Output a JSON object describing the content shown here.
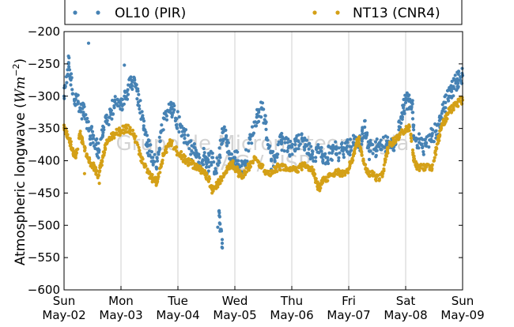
{
  "chart_data": {
    "type": "scatter",
    "ylabel": "Atmospheric longwave",
    "ylabel_unit_base": "W",
    "ylabel_unit_m": "m",
    "ylabel_unit_exp": "−2",
    "ylim": [
      -600,
      -200
    ],
    "yticks": [
      -200,
      -250,
      -300,
      -350,
      -400,
      -450,
      -500,
      -550,
      -600
    ],
    "ytick_labels": [
      "−200",
      "−250",
      "−300",
      "−350",
      "−400",
      "−450",
      "−500",
      "−550",
      "−600"
    ],
    "xlim": [
      "2013-05-02",
      "2013-05-09"
    ],
    "xticks": [
      {
        "day": "Sun",
        "date": "May-02"
      },
      {
        "day": "Mon",
        "date": "May-03"
      },
      {
        "day": "Tue",
        "date": "May-04"
      },
      {
        "day": "Wed",
        "date": "May-05"
      },
      {
        "day": "Thu",
        "date": "May-06"
      },
      {
        "day": "Fri",
        "date": "May-07"
      },
      {
        "day": "Sat",
        "date": "May-08"
      },
      {
        "day": "Sun",
        "date": "May-09"
      }
    ],
    "grid": "vertical",
    "legend_position": "top",
    "watermark": [
      "Grupo de Micrometeorologia",
      "IAG / USP"
    ],
    "series": [
      {
        "name": "OL10 (PIR)",
        "color": "#4682b4",
        "points": [
          [
            0.0,
            -300
          ],
          [
            0.04,
            -270
          ],
          [
            0.08,
            -250
          ],
          [
            0.12,
            -275
          ],
          [
            0.18,
            -305
          ],
          [
            0.22,
            -300
          ],
          [
            0.28,
            -318
          ],
          [
            0.34,
            -325
          ],
          [
            0.4,
            -340
          ],
          [
            0.46,
            -362
          ],
          [
            0.5,
            -355
          ],
          [
            0.56,
            -375
          ],
          [
            0.6,
            -385
          ],
          [
            0.66,
            -365
          ],
          [
            0.7,
            -352
          ],
          [
            0.76,
            -338
          ],
          [
            0.82,
            -325
          ],
          [
            0.88,
            -315
          ],
          [
            0.94,
            -305
          ],
          [
            1.0,
            -312
          ],
          [
            1.06,
            -300
          ],
          [
            1.12,
            -290
          ],
          [
            1.18,
            -282
          ],
          [
            1.24,
            -275
          ],
          [
            1.28,
            -292
          ],
          [
            1.32,
            -315
          ],
          [
            1.38,
            -330
          ],
          [
            1.42,
            -352
          ],
          [
            1.46,
            -372
          ],
          [
            1.5,
            -385
          ],
          [
            1.56,
            -395
          ],
          [
            1.62,
            -410
          ],
          [
            1.66,
            -390
          ],
          [
            1.7,
            -355
          ],
          [
            1.76,
            -335
          ],
          [
            1.82,
            -322
          ],
          [
            1.88,
            -318
          ],
          [
            1.92,
            -325
          ],
          [
            1.98,
            -335
          ],
          [
            2.04,
            -345
          ],
          [
            2.08,
            -355
          ],
          [
            2.12,
            -360
          ],
          [
            2.18,
            -372
          ],
          [
            2.24,
            -385
          ],
          [
            2.3,
            -380
          ],
          [
            2.36,
            -392
          ],
          [
            2.42,
            -403
          ],
          [
            2.46,
            -392
          ],
          [
            2.5,
            -410
          ],
          [
            2.54,
            -402
          ],
          [
            2.6,
            -395
          ],
          [
            2.66,
            -412
          ],
          [
            2.72,
            -400
          ],
          [
            2.76,
            -368
          ],
          [
            2.8,
            -355
          ],
          [
            2.86,
            -372
          ],
          [
            2.9,
            -390
          ],
          [
            2.94,
            -398
          ],
          [
            3.0,
            -395
          ],
          [
            3.06,
            -400
          ],
          [
            3.12,
            -408
          ],
          [
            3.18,
            -400
          ],
          [
            3.24,
            -385
          ],
          [
            3.3,
            -360
          ],
          [
            3.36,
            -340
          ],
          [
            3.42,
            -325
          ],
          [
            3.48,
            -320
          ],
          [
            3.54,
            -342
          ],
          [
            3.58,
            -375
          ],
          [
            3.64,
            -400
          ],
          [
            3.7,
            -395
          ],
          [
            3.76,
            -375
          ],
          [
            3.82,
            -370
          ],
          [
            3.88,
            -372
          ],
          [
            3.94,
            -380
          ],
          [
            4.0,
            -378
          ],
          [
            4.06,
            -375
          ],
          [
            4.12,
            -370
          ],
          [
            4.18,
            -365
          ],
          [
            4.24,
            -375
          ],
          [
            4.3,
            -382
          ],
          [
            4.36,
            -385
          ],
          [
            4.42,
            -395
          ],
          [
            4.48,
            -380
          ],
          [
            4.54,
            -390
          ],
          [
            4.6,
            -395
          ],
          [
            4.66,
            -388
          ],
          [
            4.72,
            -385
          ],
          [
            4.78,
            -382
          ],
          [
            4.84,
            -388
          ],
          [
            4.9,
            -385
          ],
          [
            4.96,
            -380
          ],
          [
            5.02,
            -378
          ],
          [
            5.08,
            -372
          ],
          [
            5.14,
            -365
          ],
          [
            5.2,
            -375
          ],
          [
            5.24,
            -358
          ],
          [
            5.28,
            -348
          ],
          [
            5.32,
            -360
          ],
          [
            5.36,
            -385
          ],
          [
            5.42,
            -375
          ],
          [
            5.48,
            -380
          ],
          [
            5.54,
            -372
          ],
          [
            5.6,
            -378
          ],
          [
            5.66,
            -375
          ],
          [
            5.7,
            -370
          ],
          [
            5.76,
            -372
          ],
          [
            5.82,
            -375
          ],
          [
            5.88,
            -352
          ],
          [
            5.92,
            -332
          ],
          [
            5.96,
            -318
          ],
          [
            6.0,
            -310
          ],
          [
            6.04,
            -305
          ],
          [
            6.08,
            -308
          ],
          [
            6.12,
            -312
          ],
          [
            6.14,
            -352
          ],
          [
            6.18,
            -365
          ],
          [
            6.24,
            -372
          ],
          [
            6.3,
            -378
          ],
          [
            6.36,
            -372
          ],
          [
            6.42,
            -368
          ],
          [
            6.46,
            -362
          ],
          [
            6.52,
            -355
          ],
          [
            6.58,
            -345
          ],
          [
            6.62,
            -332
          ],
          [
            6.66,
            -320
          ],
          [
            6.7,
            -310
          ],
          [
            6.76,
            -300
          ],
          [
            6.8,
            -292
          ],
          [
            6.84,
            -285
          ],
          [
            6.88,
            -280
          ],
          [
            6.92,
            -275
          ],
          [
            6.96,
            -270
          ],
          [
            7.0,
            -268
          ],
          [
            0.43,
            -218
          ],
          [
            2.72,
            -478
          ],
          [
            2.74,
            -498
          ],
          [
            2.78,
            -535
          ],
          [
            2.7,
            -503
          ],
          [
            0.08,
            -248
          ],
          [
            1.06,
            -252
          ]
        ]
      },
      {
        "name": "NT13 (CNR4)",
        "color": "#d4a017",
        "points": [
          [
            0.0,
            -345
          ],
          [
            0.04,
            -355
          ],
          [
            0.08,
            -365
          ],
          [
            0.12,
            -375
          ],
          [
            0.16,
            -385
          ],
          [
            0.2,
            -395
          ],
          [
            0.24,
            -382
          ],
          [
            0.28,
            -358
          ],
          [
            0.32,
            -368
          ],
          [
            0.36,
            -378
          ],
          [
            0.4,
            -392
          ],
          [
            0.44,
            -400
          ],
          [
            0.48,
            -404
          ],
          [
            0.52,
            -408
          ],
          [
            0.56,
            -415
          ],
          [
            0.6,
            -422
          ],
          [
            0.64,
            -410
          ],
          [
            0.68,
            -395
          ],
          [
            0.72,
            -380
          ],
          [
            0.76,
            -372
          ],
          [
            0.8,
            -365
          ],
          [
            0.86,
            -360
          ],
          [
            0.92,
            -357
          ],
          [
            0.98,
            -355
          ],
          [
            1.04,
            -352
          ],
          [
            1.1,
            -350
          ],
          [
            1.16,
            -352
          ],
          [
            1.22,
            -360
          ],
          [
            1.28,
            -372
          ],
          [
            1.34,
            -392
          ],
          [
            1.4,
            -405
          ],
          [
            1.46,
            -418
          ],
          [
            1.52,
            -425
          ],
          [
            1.58,
            -430
          ],
          [
            1.64,
            -432
          ],
          [
            1.7,
            -410
          ],
          [
            1.74,
            -392
          ],
          [
            1.78,
            -385
          ],
          [
            1.84,
            -375
          ],
          [
            1.88,
            -372
          ],
          [
            1.94,
            -380
          ],
          [
            2.0,
            -388
          ],
          [
            2.06,
            -392
          ],
          [
            2.12,
            -398
          ],
          [
            2.18,
            -402
          ],
          [
            2.24,
            -405
          ],
          [
            2.3,
            -408
          ],
          [
            2.36,
            -410
          ],
          [
            2.42,
            -415
          ],
          [
            2.48,
            -422
          ],
          [
            2.54,
            -428
          ],
          [
            2.58,
            -440
          ],
          [
            2.62,
            -447
          ],
          [
            2.68,
            -438
          ],
          [
            2.74,
            -430
          ],
          [
            2.8,
            -425
          ],
          [
            2.86,
            -415
          ],
          [
            2.92,
            -408
          ],
          [
            2.96,
            -405
          ],
          [
            3.0,
            -410
          ],
          [
            3.06,
            -418
          ],
          [
            3.12,
            -422
          ],
          [
            3.18,
            -420
          ],
          [
            3.24,
            -410
          ],
          [
            3.3,
            -402
          ],
          [
            3.36,
            -398
          ],
          [
            3.42,
            -402
          ],
          [
            3.48,
            -410
          ],
          [
            3.54,
            -418
          ],
          [
            3.6,
            -422
          ],
          [
            3.66,
            -418
          ],
          [
            3.72,
            -412
          ],
          [
            3.78,
            -410
          ],
          [
            3.84,
            -408
          ],
          [
            3.9,
            -410
          ],
          [
            3.96,
            -412
          ],
          [
            4.02,
            -412
          ],
          [
            4.08,
            -415
          ],
          [
            4.14,
            -410
          ],
          [
            4.2,
            -408
          ],
          [
            4.26,
            -410
          ],
          [
            4.32,
            -412
          ],
          [
            4.38,
            -418
          ],
          [
            4.42,
            -430
          ],
          [
            4.46,
            -440
          ],
          [
            4.5,
            -442
          ],
          [
            4.54,
            -432
          ],
          [
            4.58,
            -428
          ],
          [
            4.64,
            -425
          ],
          [
            4.7,
            -422
          ],
          [
            4.76,
            -420
          ],
          [
            4.82,
            -418
          ],
          [
            4.88,
            -420
          ],
          [
            4.94,
            -418
          ],
          [
            5.0,
            -412
          ],
          [
            5.06,
            -398
          ],
          [
            5.1,
            -385
          ],
          [
            5.14,
            -372
          ],
          [
            5.18,
            -368
          ],
          [
            5.22,
            -385
          ],
          [
            5.26,
            -400
          ],
          [
            5.3,
            -412
          ],
          [
            5.36,
            -418
          ],
          [
            5.42,
            -420
          ],
          [
            5.48,
            -425
          ],
          [
            5.54,
            -428
          ],
          [
            5.6,
            -420
          ],
          [
            5.64,
            -400
          ],
          [
            5.68,
            -385
          ],
          [
            5.72,
            -375
          ],
          [
            5.78,
            -370
          ],
          [
            5.84,
            -365
          ],
          [
            5.9,
            -360
          ],
          [
            5.96,
            -355
          ],
          [
            6.02,
            -352
          ],
          [
            6.06,
            -348
          ],
          [
            6.1,
            -365
          ],
          [
            6.14,
            -395
          ],
          [
            6.18,
            -408
          ],
          [
            6.24,
            -410
          ],
          [
            6.3,
            -412
          ],
          [
            6.36,
            -410
          ],
          [
            6.42,
            -408
          ],
          [
            6.46,
            -412
          ],
          [
            6.5,
            -400
          ],
          [
            6.54,
            -380
          ],
          [
            6.58,
            -365
          ],
          [
            6.62,
            -352
          ],
          [
            6.66,
            -342
          ],
          [
            6.7,
            -335
          ],
          [
            6.74,
            -328
          ],
          [
            6.78,
            -322
          ],
          [
            6.84,
            -318
          ],
          [
            6.9,
            -312
          ],
          [
            6.96,
            -308
          ],
          [
            7.0,
            -306
          ],
          [
            0.36,
            -420
          ],
          [
            0.62,
            -435
          ],
          [
            1.62,
            -438
          ],
          [
            2.6,
            -450
          ]
        ]
      }
    ]
  }
}
